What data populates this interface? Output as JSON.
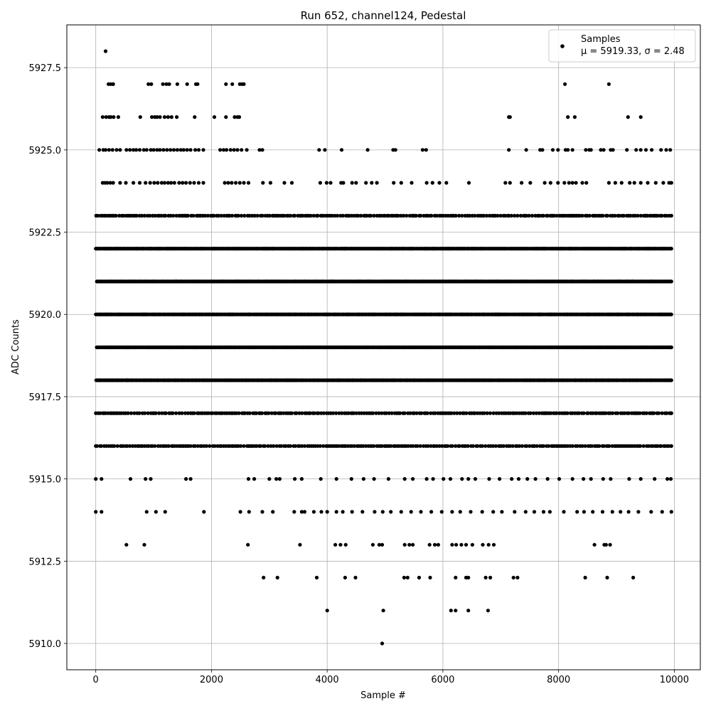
{
  "chart_data": {
    "type": "scatter",
    "title": "Run 652, channel124, Pedestal",
    "xlabel": "Sample #",
    "ylabel": "ADC Counts",
    "xlim": [
      -500,
      10450
    ],
    "ylim": [
      5909.2,
      5928.8
    ],
    "xticks": [
      0,
      2000,
      4000,
      6000,
      8000,
      10000
    ],
    "xtick_labels": [
      "0",
      "2000",
      "4000",
      "6000",
      "8000",
      "10000"
    ],
    "yticks": [
      5910.0,
      5912.5,
      5915.0,
      5917.5,
      5920.0,
      5922.5,
      5925.0,
      5927.5
    ],
    "ytick_labels": [
      "5910.0",
      "5912.5",
      "5915.0",
      "5917.5",
      "5920.0",
      "5922.5",
      "5925.0",
      "5927.5"
    ],
    "grid": true,
    "legend": {
      "location": "upper right",
      "series_label": "Samples",
      "stats_label": "μ = 5919.33, σ = 2.48"
    },
    "marker_color": "#000000",
    "series": [
      {
        "name": "Samples",
        "mean": 5919.33,
        "std": 2.48,
        "levels": [
          {
            "y": 5910,
            "x": [
              4950
            ]
          },
          {
            "y": 5911,
            "x": [
              4000,
              4970,
              6140,
              6220,
              6440,
              6780
            ]
          },
          {
            "y": 5912,
            "x": [
              2900,
              3140,
              3820,
              4310,
              4490,
              5330,
              5390,
              5590,
              5780,
              6220,
              6400,
              6440,
              6740,
              6820,
              7220,
              7290,
              8460,
              8840,
              9290
            ]
          },
          {
            "y": 5913,
            "x": [
              530,
              840,
              2630,
              3530,
              4140,
              4230,
              4320,
              4790,
              4900,
              4950,
              5340,
              5420,
              5480,
              5770,
              5860,
              5920,
              6160,
              6230,
              6320,
              6400,
              6510,
              6690,
              6790,
              6880,
              8620,
              8790,
              8820,
              8890
            ]
          },
          {
            "y": 5915,
            "x": [
              0,
              100,
              600,
              860,
              950,
              1560,
              1640,
              2640,
              2740,
              3000,
              3120,
              3180,
              3440,
              3560,
              3890,
              4160,
              4420,
              4630,
              4810,
              5060,
              5340,
              5480,
              5720,
              5830,
              6010,
              6130,
              6330,
              6440,
              6560,
              6800,
              6980,
              7190,
              7310,
              7460,
              7600,
              7810,
              8010,
              8240,
              8430,
              8560,
              8770,
              8900,
              9220,
              9420,
              9660,
              9880,
              9940
            ]
          },
          {
            "y": 5914,
            "x": [
              0,
              100,
              880,
              1040,
              1200,
              1870,
              2500,
              2650,
              2880,
              3060,
              3430,
              3560,
              3610,
              3770,
              3900,
              4000,
              4160,
              4270,
              4430,
              4610,
              4820,
              4960,
              5100,
              5280,
              5450,
              5620,
              5800,
              5980,
              6160,
              6300,
              6480,
              6680,
              6870,
              7020,
              7240,
              7430,
              7580,
              7740,
              7850,
              8090,
              8320,
              8440,
              8590,
              8760,
              8930,
              9070,
              9210,
              9380,
              9600,
              9790,
              9950
            ]
          }
        ],
        "dense_levels": [
          5916,
          5917,
          5918,
          5919,
          5920,
          5921,
          5922,
          5923
        ],
        "sparse_levels": [
          {
            "y": 5924,
            "x": [
              120,
              160,
              200,
              250,
              300,
              420,
              520,
              650,
              760,
              860,
              940,
              1010,
              1070,
              1140,
              1190,
              1250,
              1300,
              1360,
              1440,
              1500,
              1560,
              1630,
              1700,
              1780,
              1860,
              2230,
              2290,
              2350,
              2420,
              2490,
              2560,
              2640,
              2890,
              3020,
              3260,
              3390,
              3880,
              3990,
              4060,
              4240,
              4280,
              4430,
              4500,
              4670,
              4770,
              4860,
              5150,
              5280,
              5460,
              5720,
              5820,
              5940,
              6060,
              6450,
              7080,
              7160,
              7360,
              7510,
              7760,
              7860,
              7990,
              8100,
              8180,
              8240,
              8300,
              8410,
              8480,
              8870,
              8980,
              9090,
              9230,
              9310,
              9420,
              9540,
              9680,
              9810,
              9910,
              9950
            ]
          },
          {
            "y": 5925,
            "x": [
              60,
              130,
              170,
              230,
              290,
              360,
              420,
              530,
              590,
              650,
              700,
              760,
              830,
              880,
              950,
              1000,
              1060,
              1110,
              1170,
              1230,
              1290,
              1350,
              1410,
              1470,
              1520,
              1580,
              1640,
              1720,
              1780,
              1860,
              2150,
              2210,
              2260,
              2330,
              2390,
              2450,
              2520,
              2610,
              2830,
              2880,
              3860,
              3960,
              4250,
              4700,
              5140,
              5180,
              5650,
              5710,
              7140,
              7440,
              7680,
              7720,
              7900,
              7990,
              8120,
              8160,
              8240,
              8470,
              8530,
              8560,
              8730,
              8780,
              8900,
              8940,
              9180,
              9340,
              9420,
              9510,
              9610,
              9770,
              9860,
              9930
            ]
          },
          {
            "y": 5926,
            "x": [
              120,
              180,
              230,
              260,
              310,
              390,
              770,
              970,
              1020,
              1060,
              1110,
              1190,
              1250,
              1310,
              1400,
              1710,
              2050,
              2250,
              2400,
              2450,
              2480,
              7140,
              7160,
              8160,
              8280,
              9200,
              9420
            ]
          },
          {
            "y": 5927,
            "x": [
              220,
              260,
              300,
              300,
              910,
              960,
              1160,
              1220,
              1270,
              1410,
              1580,
              1730,
              1760,
              2250,
              2360,
              2490,
              2530,
              2560,
              8110,
              8870
            ]
          },
          {
            "y": 5928,
            "x": [
              170
            ]
          }
        ]
      }
    ]
  }
}
